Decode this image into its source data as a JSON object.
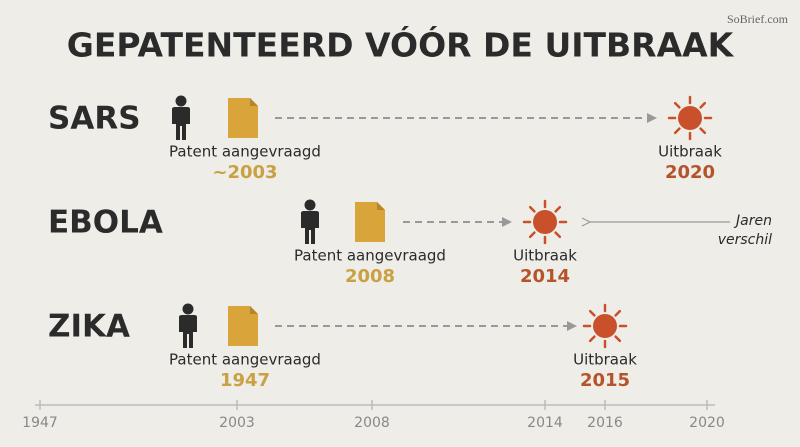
{
  "header": {
    "title": "GEPATENTEERD VÓÓR DE UITBRAAK",
    "watermark": "SoBrief.com"
  },
  "rows": [
    {
      "disease": "SARS",
      "patent_label": "Patent aangevraagd",
      "patent_year": "~2003",
      "outbreak_label": "Uitbraak",
      "outbreak_year": "2020"
    },
    {
      "disease": "EBOLA",
      "patent_label": "Patent aangevraagd",
      "patent_year": "2008",
      "outbreak_label": "Uitbraak",
      "outbreak_year": "2014"
    },
    {
      "disease": "ZIKA",
      "patent_label": "Patent aangevraagd",
      "patent_year": "1947",
      "outbreak_label": "Uitbraak",
      "outbreak_year": "2015"
    }
  ],
  "annotation": {
    "lines": [
      "Jaren",
      "verschil"
    ]
  },
  "timeline": {
    "ticks": [
      "1947",
      "2003",
      "2008",
      "2014",
      "2016",
      "2020"
    ]
  }
}
